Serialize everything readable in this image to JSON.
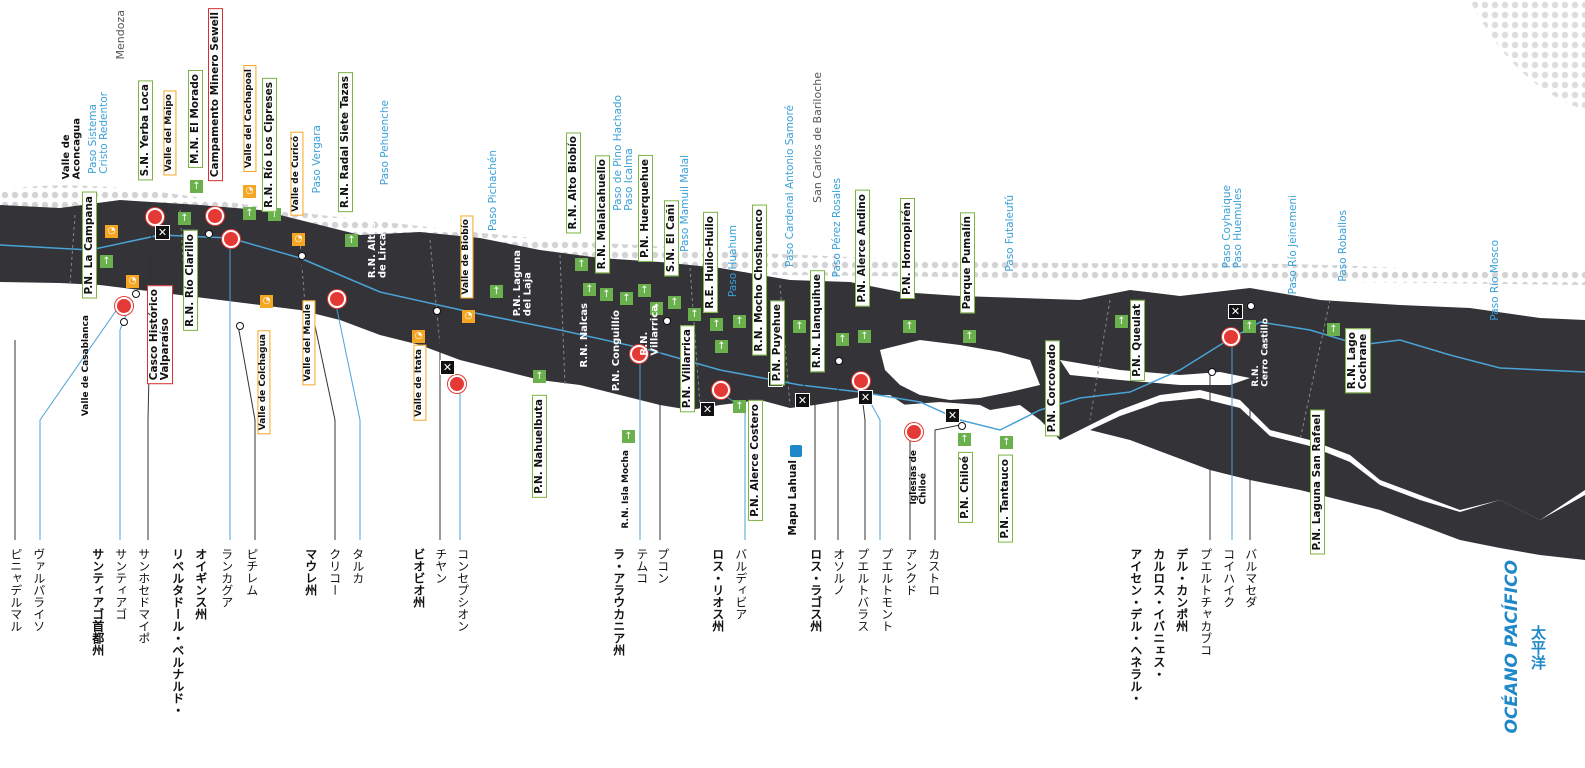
{
  "colors": {
    "land": "#333338",
    "park": "#7cb342",
    "wine": "#f5a623",
    "heritage": "#d32f2f",
    "pass": "#3aa0d8",
    "river": "#4aa3d6",
    "ocean": "#1e88c8"
  },
  "top_labels": {
    "valle_aconcagua": "Valle de\nAconcagua",
    "paso_sistema": "Paso Sistema\nCristo Redentor",
    "mendoza": "Mendoza",
    "yerba_loca": "S.N. Yerba Loca",
    "valle_maipo": "Valle del Maipo",
    "el_morado": "M.N. El Morado",
    "sewell": "Campamento Minero Sewell",
    "valle_cachapoal": "Valle del Cachapoal",
    "rio_cipreses": "R.N. Río Los Cipreses",
    "valle_curico": "Valle de Curicó",
    "paso_vergara": "Paso Vergara",
    "siete_tazas": "R.N. Radal Siete Tazas",
    "paso_pehuenche": "Paso Pehuenche",
    "paso_pichachen": "Paso Pichachén",
    "alto_biobio": "R.N. Alto Biobío",
    "malalcahuello": "R.N. Malalcahuello",
    "paso_pino": "Paso de Pino Hachado\nPaso Icalma",
    "huerquehue": "P.N. Huerquehue",
    "paso_mamuil": "Paso Mamuil Malal",
    "el_cani": "S.N. El Cañi",
    "huilo": "R.E. Huilo-Huilo",
    "paso_huahum": "Paso Huahum",
    "choshuenco": "R.N. Mocho Choshuenco",
    "paso_samore": "Paso Cardenal Antonio Samoré",
    "bariloche": "San Carlos de Bariloche",
    "paso_perez": "Paso Pérez Rosales",
    "alerce_andino": "P.N. Alerce Andino",
    "hornopiren": "P.N. Hornopirén",
    "pumalin": "Parque Pumalín",
    "paso_futaleufu": "Paso Futaleufú",
    "paso_coyhaique": "Paso Coyhaique\nPaso Huemules",
    "paso_jeinemeni": "Paso Río Jeinemeni",
    "paso_roballos": "Paso Roballos",
    "paso_mosco": "Paso Río Mosco"
  },
  "map_labels": {
    "la_campana": "P.N. La Campana",
    "casablanca": "Valle de Casablanca",
    "valparaiso": "Casco Histórico\nValparaíso",
    "rio_clarillo": "R.N. Río Clarillo",
    "colchagua": "Valle de Colchagua",
    "maule": "Valle del Maule",
    "altos_lircay": "R.N. Altos\nde Lircay",
    "biobio": "Valle de Biobío",
    "itata": "Valle de Itata",
    "laguna_laja": "P.N. Laguna\ndel Laja",
    "nalcas": "R.N. Nalcas",
    "conguillio": "P.N. Conguillío",
    "rn_villarrica": "R.N.\nVillarrica",
    "nahuelbuta": "P.N. Nahuelbuta",
    "isla_mocha": "R.N. Isla Mocha",
    "pn_villarrica": "P.N. Villarrica",
    "alerce_costero": "P.N. Alerce Costero",
    "puyehue": "P.N. Puyehue",
    "llanquihue": "R.N. Llanquihue",
    "mapu_lahual": "Mapu Lahual",
    "iglesias": "Iglesias de\nChiloé",
    "chiloe": "P.N. Chiloé",
    "tantauco": "P.N. Tantauco",
    "corcovado": "P.N. Corcovado",
    "queulat": "P.N. Queulat",
    "cerro_castillo": "R.N.\nCerro Castillo",
    "laguna_san_rafael": "P.N. Laguna San Rafael",
    "lago_cochrane": "R.N. Lago\nCochrane"
  },
  "bottom_labels": [
    {
      "text": "ピニャデルマル",
      "bold": false
    },
    {
      "text": "ヴァルパライソ",
      "bold": false
    },
    {
      "text": "サンティアゴ首都州",
      "bold": true
    },
    {
      "text": "サンティアゴ",
      "bold": false
    },
    {
      "text": "サンホセドマイポ",
      "bold": false
    },
    {
      "text": "リベルタドール・ベルナルド・",
      "bold": true
    },
    {
      "text": "オイギンス州",
      "bold": true
    },
    {
      "text": "ランカグア",
      "bold": false
    },
    {
      "text": "ピチレム",
      "bold": false
    },
    {
      "text": "マウレ州",
      "bold": true
    },
    {
      "text": "クリコー",
      "bold": false
    },
    {
      "text": "タルカ",
      "bold": false
    },
    {
      "text": "ビオビオ州",
      "bold": true
    },
    {
      "text": "チヤン",
      "bold": false
    },
    {
      "text": "コンセプシオン",
      "bold": false
    },
    {
      "text": "ラ・アラウカニア州",
      "bold": true
    },
    {
      "text": "テムコ",
      "bold": false
    },
    {
      "text": "プコン",
      "bold": false
    },
    {
      "text": "ロス・リオス州",
      "bold": true
    },
    {
      "text": "バルディビア",
      "bold": false
    },
    {
      "text": "ロス・ラゴス州",
      "bold": true
    },
    {
      "text": "オソルノ",
      "bold": false
    },
    {
      "text": "プエルトバラス",
      "bold": false
    },
    {
      "text": "プエルトモント",
      "bold": false
    },
    {
      "text": "アンクド",
      "bold": false
    },
    {
      "text": "カストロ",
      "bold": false
    },
    {
      "text": "アイセン・デル・ヘネラル・",
      "bold": true
    },
    {
      "text": "カルロス・イバニェス・",
      "bold": true
    },
    {
      "text": "デル・カンポ州",
      "bold": true
    },
    {
      "text": "プエルトチャカブコ",
      "bold": false
    },
    {
      "text": "コイハイク",
      "bold": false
    },
    {
      "text": "バルマセダ",
      "bold": false
    }
  ],
  "ocean": {
    "es": "OCÉANO PACÍFICO",
    "jp": "太平洋"
  }
}
